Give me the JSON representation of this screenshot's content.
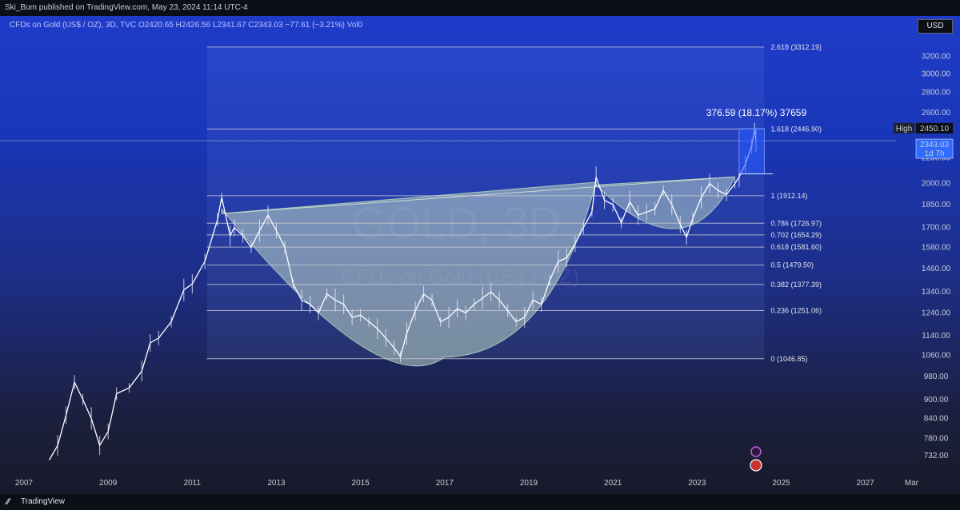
{
  "header": {
    "published_by": "Ski_Bum published on TradingView.com, May 23, 2024 11:14 UTC-4"
  },
  "legend": {
    "text": "CFDs on Gold (US$ / OZ), 3D, TVC  O2420.65  H2426.56  L2341.67  C2343.03  −77.61 (−3.21%)  Vol0"
  },
  "currency": "USD",
  "watermark": {
    "symbol": "GOLD, 3D",
    "name": "CFDs on Gold (US$ / OZ)"
  },
  "price_labels": {
    "high_tag": "High",
    "high_value": "2450.10",
    "last_value": "2343.03",
    "countdown": "1d 7h"
  },
  "measurement": {
    "text": "376.59 (18.17%) 37659"
  },
  "footer": {
    "brand": "TradingView"
  },
  "colors": {
    "accent_blue": "#1f3cc9",
    "fill_green": "#b9d2c0",
    "price_line": "#ffffff"
  },
  "chart_data": {
    "type": "line",
    "y_scale": "log",
    "ylim": [
      700,
      3400
    ],
    "xlim": [
      2007.0,
      2028.3
    ],
    "x_ticks": [
      "2007",
      "2009",
      "2011",
      "2013",
      "2015",
      "2017",
      "2019",
      "2021",
      "2023",
      "2025",
      "2027",
      "Mar"
    ],
    "y_ticks": [
      "3200.00",
      "3000.00",
      "2800.00",
      "2600.00",
      "2200.00",
      "2000.00",
      "1850.00",
      "1700.00",
      "1580.00",
      "1460.00",
      "1340.00",
      "1240.00",
      "1140.00",
      "1060.00",
      "980.00",
      "900.00",
      "840.00",
      "780.00",
      "732.00"
    ],
    "series": [
      {
        "values": [
          [
            2007.6,
            720
          ],
          [
            2007.8,
            760
          ],
          [
            2008.0,
            850
          ],
          [
            2008.2,
            960
          ],
          [
            2008.4,
            900
          ],
          [
            2008.6,
            840
          ],
          [
            2008.8,
            760
          ],
          [
            2009.0,
            800
          ],
          [
            2009.2,
            920
          ],
          [
            2009.5,
            940
          ],
          [
            2009.8,
            1000
          ],
          [
            2010.0,
            1110
          ],
          [
            2010.2,
            1130
          ],
          [
            2010.5,
            1200
          ],
          [
            2010.8,
            1350
          ],
          [
            2011.0,
            1380
          ],
          [
            2011.3,
            1500
          ],
          [
            2011.6,
            1750
          ],
          [
            2011.7,
            1900
          ],
          [
            2011.9,
            1650
          ],
          [
            2012.0,
            1700
          ],
          [
            2012.2,
            1650
          ],
          [
            2012.4,
            1580
          ],
          [
            2012.6,
            1680
          ],
          [
            2012.8,
            1780
          ],
          [
            2013.0,
            1680
          ],
          [
            2013.2,
            1580
          ],
          [
            2013.4,
            1380
          ],
          [
            2013.6,
            1300
          ],
          [
            2013.8,
            1280
          ],
          [
            2014.0,
            1240
          ],
          [
            2014.2,
            1330
          ],
          [
            2014.4,
            1300
          ],
          [
            2014.6,
            1280
          ],
          [
            2014.8,
            1220
          ],
          [
            2015.0,
            1230
          ],
          [
            2015.2,
            1200
          ],
          [
            2015.4,
            1170
          ],
          [
            2015.6,
            1130
          ],
          [
            2015.8,
            1090
          ],
          [
            2015.95,
            1055
          ],
          [
            2016.1,
            1150
          ],
          [
            2016.3,
            1250
          ],
          [
            2016.5,
            1330
          ],
          [
            2016.7,
            1300
          ],
          [
            2016.9,
            1200
          ],
          [
            2017.1,
            1220
          ],
          [
            2017.3,
            1260
          ],
          [
            2017.5,
            1240
          ],
          [
            2017.7,
            1280
          ],
          [
            2017.9,
            1310
          ],
          [
            2018.1,
            1340
          ],
          [
            2018.3,
            1300
          ],
          [
            2018.5,
            1250
          ],
          [
            2018.7,
            1200
          ],
          [
            2018.9,
            1220
          ],
          [
            2019.1,
            1300
          ],
          [
            2019.3,
            1280
          ],
          [
            2019.5,
            1400
          ],
          [
            2019.7,
            1500
          ],
          [
            2019.9,
            1520
          ],
          [
            2020.1,
            1600
          ],
          [
            2020.3,
            1700
          ],
          [
            2020.5,
            1800
          ],
          [
            2020.6,
            2050
          ],
          [
            2020.8,
            1880
          ],
          [
            2021.0,
            1850
          ],
          [
            2021.2,
            1730
          ],
          [
            2021.4,
            1870
          ],
          [
            2021.6,
            1780
          ],
          [
            2021.8,
            1800
          ],
          [
            2022.0,
            1820
          ],
          [
            2022.2,
            1950
          ],
          [
            2022.4,
            1850
          ],
          [
            2022.6,
            1720
          ],
          [
            2022.75,
            1640
          ],
          [
            2022.9,
            1760
          ],
          [
            2023.1,
            1900
          ],
          [
            2023.3,
            2000
          ],
          [
            2023.5,
            1950
          ],
          [
            2023.7,
            1920
          ],
          [
            2023.9,
            2000
          ],
          [
            2024.0,
            2050
          ],
          [
            2024.15,
            2150
          ],
          [
            2024.3,
            2300
          ],
          [
            2024.37,
            2450
          ],
          [
            2024.4,
            2343
          ]
        ]
      }
    ],
    "fibonacci": {
      "levels": [
        {
          "ratio": "2.618",
          "price": "3312.19",
          "value": 3312.19
        },
        {
          "ratio": "1.618",
          "price": "2446.90",
          "value": 2446.9
        },
        {
          "ratio": "1",
          "price": "1912.14",
          "value": 1912.14
        },
        {
          "ratio": "0.786",
          "price": "1726.97",
          "value": 1726.97
        },
        {
          "ratio": "0.702",
          "price": "1654.29",
          "value": 1654.29
        },
        {
          "ratio": "0.618",
          "price": "1581.60",
          "value": 1581.6
        },
        {
          "ratio": "0.5",
          "price": "1479.50",
          "value": 1479.5
        },
        {
          "ratio": "0.382",
          "price": "1377.39",
          "value": 1377.39
        },
        {
          "ratio": "0.236",
          "price": "1251.06",
          "value": 1251.06
        },
        {
          "ratio": "0",
          "price": "1046.85",
          "value": 1046.85
        }
      ],
      "x_start": 2011.35,
      "x_end": 2024.6
    },
    "cup_and_handle": {
      "rim_start": [
        2011.7,
        1900
      ],
      "rim_end": [
        2023.9,
        2050
      ],
      "cup_bottom": [
        2016.0,
        1048
      ],
      "handle_bottom": [
        2022.75,
        1640
      ]
    },
    "high": 2450.1,
    "last": 2343.03
  }
}
